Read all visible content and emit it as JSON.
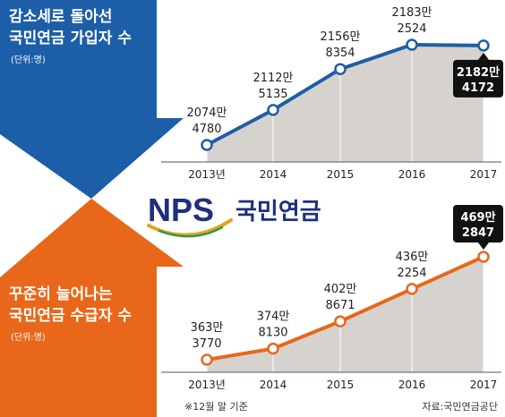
{
  "logo": {
    "mark": "NPS",
    "name": "국민연금"
  },
  "footnote": "※12월 말 기준",
  "source": "자료:국민연금공단",
  "colors": {
    "blue": "#1d5ea8",
    "orange": "#e8671a",
    "navy": "#1f2f7c",
    "fill": "#d6d3cf",
    "callout": "#111111"
  },
  "chart_data": [
    {
      "type": "area",
      "title": "감소세로 돌아선",
      "subtitle": "국민연금 가입자 수",
      "unit": "(단위:명)",
      "categories": [
        "2013년",
        "2014",
        "2015",
        "2016",
        "2017"
      ],
      "values": [
        20744780,
        21125135,
        21568354,
        21832524,
        21824172
      ],
      "labels": [
        [
          "2074만",
          "4780"
        ],
        [
          "2112만",
          "5135"
        ],
        [
          "2156만",
          "8354"
        ],
        [
          "2183만",
          "2524"
        ],
        [
          "2182만",
          "4172"
        ]
      ],
      "highlight_last": true
    },
    {
      "type": "area",
      "title": "꾸준히 늘어나는",
      "subtitle": "국민연금 수급자 수",
      "unit": "(단위:명)",
      "categories": [
        "2013년",
        "2014",
        "2015",
        "2016",
        "2017"
      ],
      "values": [
        3633770,
        3748130,
        4028671,
        4362254,
        4692847
      ],
      "labels": [
        [
          "363만",
          "3770"
        ],
        [
          "374만",
          "8130"
        ],
        [
          "402만",
          "8671"
        ],
        [
          "436만",
          "2254"
        ],
        [
          "469만",
          "2847"
        ]
      ],
      "highlight_last": true
    }
  ]
}
